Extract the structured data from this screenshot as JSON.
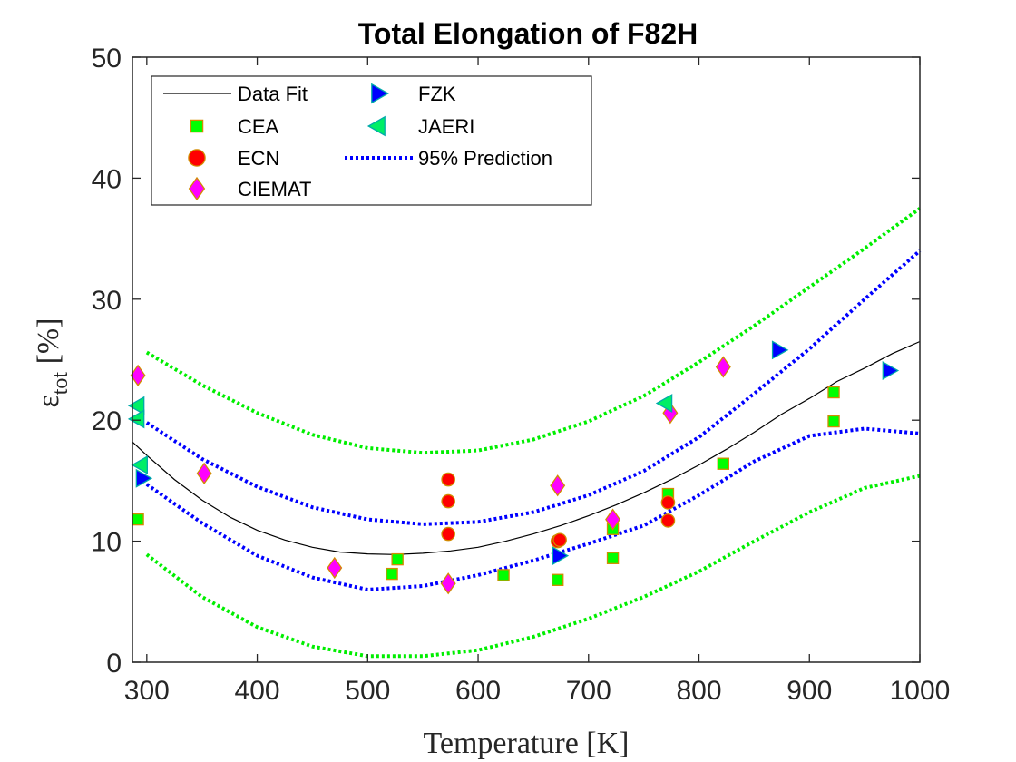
{
  "chart_data": {
    "type": "scatter",
    "title": "Total Elongation of F82H",
    "xlabel": "Temperature [K]",
    "ylabel": {
      "base": "ε",
      "sub": "tot",
      "rest": " [%]"
    },
    "xlim": [
      287,
      1000
    ],
    "ylim": [
      0,
      50
    ],
    "xticks": [
      300,
      400,
      500,
      600,
      700,
      800,
      900,
      1000
    ],
    "yticks": [
      0,
      10,
      20,
      30,
      40,
      50
    ],
    "grid": false,
    "legend_position": "top-left",
    "series": [
      {
        "name": "CEA",
        "marker": "square",
        "color": "#00ff00",
        "edge": "#d28c00",
        "points": [
          [
            292,
            11.8
          ],
          [
            522,
            7.3
          ],
          [
            527,
            8.5
          ],
          [
            623,
            7.2
          ],
          [
            672,
            6.8
          ],
          [
            722,
            8.6
          ],
          [
            722,
            11.0
          ],
          [
            772,
            13.9
          ],
          [
            822,
            16.4
          ],
          [
            922,
            22.3
          ],
          [
            922,
            19.9
          ]
        ]
      },
      {
        "name": "ECN",
        "marker": "circle",
        "color": "#ff0000",
        "edge": "#d28c00",
        "points": [
          [
            573,
            15.1
          ],
          [
            573,
            13.3
          ],
          [
            573,
            10.6
          ],
          [
            672,
            10.0
          ],
          [
            674,
            10.1
          ],
          [
            772,
            13.2
          ],
          [
            772,
            11.7
          ]
        ]
      },
      {
        "name": "CIEMAT",
        "marker": "diamond",
        "color": "#ff00ff",
        "edge": "#d28c00",
        "points": [
          [
            292,
            23.7
          ],
          [
            352,
            15.6
          ],
          [
            470,
            7.8
          ],
          [
            573,
            6.5
          ],
          [
            672,
            14.6
          ],
          [
            722,
            11.8
          ],
          [
            774,
            20.6
          ],
          [
            822,
            24.4
          ]
        ]
      },
      {
        "name": "FZK",
        "marker": "triangle-right",
        "color": "#0000ff",
        "edge": "#00aaaa",
        "points": [
          [
            296,
            15.2
          ],
          [
            673,
            8.8
          ],
          [
            872,
            25.8
          ],
          [
            972,
            24.1
          ]
        ]
      },
      {
        "name": "JAERI",
        "marker": "triangle-left",
        "color": "#00ee66",
        "edge": "#00aaaa",
        "points": [
          [
            292,
            21.2
          ],
          [
            292,
            20.1
          ],
          [
            295,
            16.3
          ],
          [
            770,
            21.4
          ]
        ]
      }
    ],
    "fit": {
      "name": "Data Fit",
      "color": "#000000",
      "x": [
        287,
        300,
        325,
        350,
        375,
        400,
        425,
        450,
        475,
        500,
        525,
        550,
        575,
        600,
        625,
        650,
        675,
        700,
        725,
        750,
        775,
        800,
        825,
        850,
        875,
        900,
        925,
        950,
        975,
        1000
      ],
      "y": [
        18.2,
        17.1,
        15.1,
        13.4,
        12.0,
        10.9,
        10.1,
        9.5,
        9.1,
        8.95,
        8.9,
        9.0,
        9.2,
        9.5,
        10.0,
        10.6,
        11.3,
        12.1,
        13.0,
        14.0,
        15.1,
        16.3,
        17.6,
        19.0,
        20.5,
        21.8,
        23.2,
        24.3,
        25.5,
        26.5
      ]
    },
    "prediction_bands": [
      {
        "name": "95% Prediction",
        "color": "#0000ff",
        "upper": {
          "x": [
            300,
            350,
            400,
            450,
            500,
            550,
            600,
            650,
            700,
            750,
            800,
            850,
            900,
            950,
            1000
          ],
          "y": [
            19.8,
            16.8,
            14.5,
            12.8,
            11.8,
            11.4,
            11.6,
            12.4,
            13.8,
            15.8,
            18.6,
            22.2,
            25.9,
            30.0,
            34.0
          ]
        },
        "lower": {
          "x": [
            300,
            350,
            400,
            450,
            500,
            550,
            600,
            650,
            700,
            750,
            800,
            850,
            900,
            950,
            1000
          ],
          "y": [
            14.7,
            11.5,
            8.8,
            7.0,
            6.0,
            6.3,
            7.2,
            8.4,
            9.8,
            11.3,
            13.8,
            16.6,
            18.7,
            19.3,
            18.9
          ]
        }
      },
      {
        "color": "#00ee00",
        "upper": {
          "x": [
            300,
            350,
            400,
            450,
            500,
            550,
            600,
            650,
            700,
            750,
            800,
            850,
            900,
            950,
            1000
          ],
          "y": [
            25.6,
            22.9,
            20.6,
            18.8,
            17.7,
            17.3,
            17.5,
            18.4,
            19.9,
            22.0,
            24.8,
            27.8,
            31.0,
            34.2,
            37.5
          ]
        },
        "lower": {
          "x": [
            300,
            350,
            400,
            450,
            500,
            550,
            600,
            650,
            700,
            750,
            800,
            850,
            900,
            950,
            1000
          ],
          "y": [
            8.9,
            5.4,
            2.9,
            1.3,
            0.5,
            0.5,
            1.0,
            2.1,
            3.6,
            5.4,
            7.5,
            10.0,
            12.4,
            14.4,
            15.4
          ]
        }
      }
    ]
  }
}
